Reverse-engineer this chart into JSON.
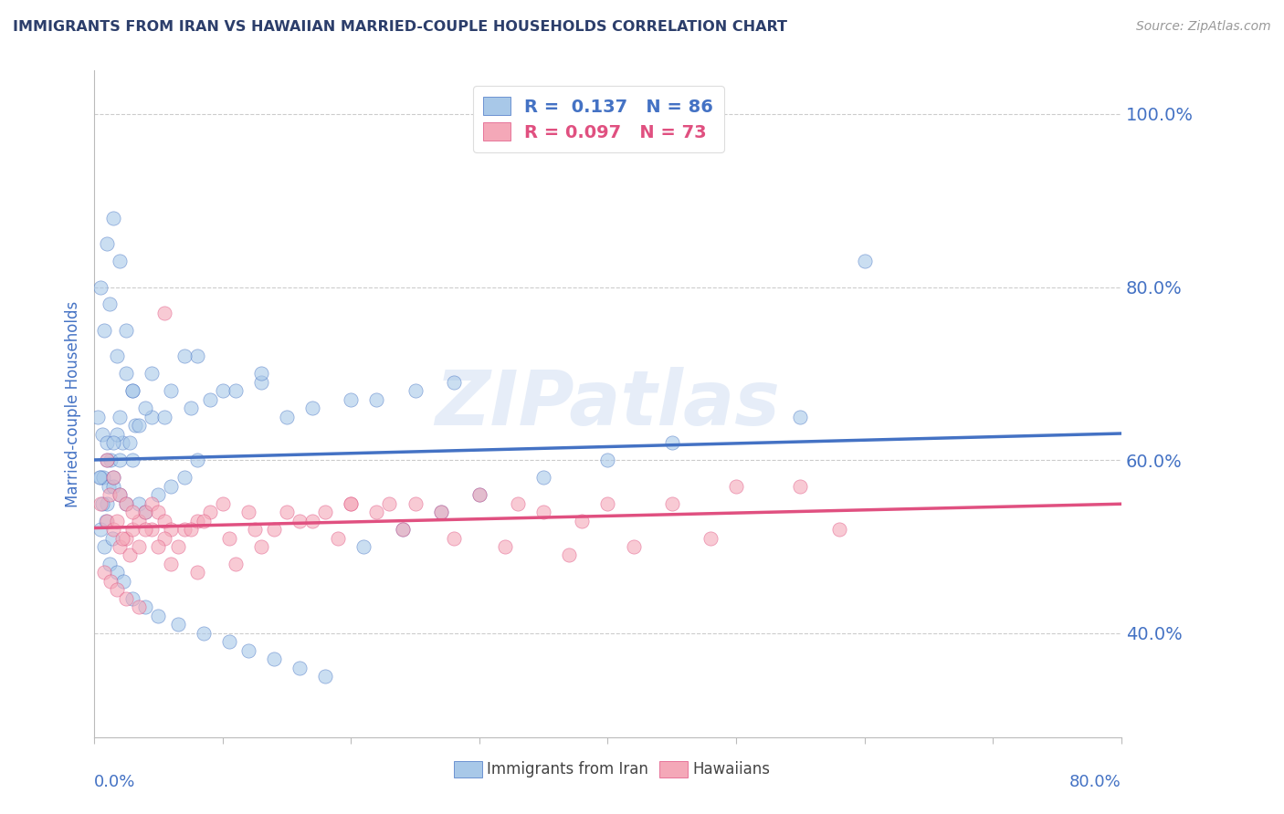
{
  "title": "IMMIGRANTS FROM IRAN VS HAWAIIAN MARRIED-COUPLE HOUSEHOLDS CORRELATION CHART",
  "source": "Source: ZipAtlas.com",
  "ylabel": "Married-couple Households",
  "yticks": [
    40.0,
    60.0,
    80.0,
    100.0
  ],
  "xticks": [
    0.0,
    10.0,
    20.0,
    30.0,
    40.0,
    50.0,
    60.0,
    70.0,
    80.0
  ],
  "xlim": [
    0.0,
    80.0
  ],
  "ylim": [
    28.0,
    105.0
  ],
  "blue_R": 0.137,
  "blue_N": 86,
  "pink_R": 0.097,
  "pink_N": 73,
  "blue_color": "#a8c8e8",
  "pink_color": "#f4a8b8",
  "blue_line_color": "#4472c4",
  "pink_line_color": "#e05080",
  "legend_label_blue": "Immigrants from Iran",
  "legend_label_pink": "Hawaiians",
  "watermark": "ZIPatlas",
  "title_color": "#2c3e6b",
  "axis_label_color": "#4472c4",
  "blue_scatter_x": [
    1.0,
    1.5,
    2.0,
    0.5,
    1.2,
    0.8,
    1.8,
    2.5,
    3.0,
    0.3,
    0.6,
    1.0,
    1.3,
    0.5,
    0.7,
    1.1,
    1.5,
    2.0,
    2.5,
    3.5,
    4.0,
    5.0,
    6.0,
    7.0,
    8.0,
    3.0,
    2.2,
    1.8,
    3.2,
    4.5,
    5.5,
    7.5,
    9.0,
    10.0,
    11.0,
    13.0,
    15.0,
    17.0,
    20.0,
    22.0,
    25.0,
    28.0,
    13.0,
    8.0,
    6.0,
    4.0,
    3.5,
    2.8,
    2.0,
    1.5,
    1.0,
    0.5,
    0.8,
    1.2,
    1.8,
    2.3,
    3.0,
    4.0,
    5.0,
    6.5,
    8.5,
    10.5,
    12.0,
    14.0,
    16.0,
    18.0,
    21.0,
    24.0,
    27.0,
    30.0,
    35.0,
    40.0,
    45.0,
    55.0,
    60.0,
    1.0,
    1.5,
    2.0,
    3.0,
    4.5,
    7.0,
    0.4,
    0.6,
    0.9,
    1.4,
    2.5
  ],
  "blue_scatter_y": [
    85,
    88,
    83,
    80,
    78,
    75,
    72,
    70,
    68,
    65,
    63,
    62,
    60,
    58,
    58,
    57,
    57,
    56,
    55,
    55,
    54,
    56,
    57,
    58,
    60,
    60,
    62,
    63,
    64,
    65,
    65,
    66,
    67,
    68,
    68,
    69,
    65,
    66,
    67,
    67,
    68,
    69,
    70,
    72,
    68,
    66,
    64,
    62,
    60,
    58,
    55,
    52,
    50,
    48,
    47,
    46,
    44,
    43,
    42,
    41,
    40,
    39,
    38,
    37,
    36,
    35,
    50,
    52,
    54,
    56,
    58,
    60,
    62,
    65,
    83,
    60,
    62,
    65,
    68,
    70,
    72,
    58,
    55,
    53,
    51,
    75
  ],
  "pink_scatter_x": [
    0.5,
    1.0,
    1.5,
    2.0,
    2.5,
    3.0,
    3.5,
    4.0,
    4.5,
    5.0,
    5.5,
    6.0,
    7.0,
    8.0,
    9.0,
    10.0,
    12.0,
    14.0,
    16.0,
    18.0,
    20.0,
    22.0,
    25.0,
    30.0,
    35.0,
    40.0,
    50.0,
    55.0,
    1.2,
    1.8,
    2.2,
    2.8,
    3.5,
    4.5,
    5.5,
    6.5,
    7.5,
    8.5,
    10.5,
    12.5,
    15.0,
    17.0,
    20.0,
    23.0,
    27.0,
    33.0,
    38.0,
    45.0,
    1.0,
    1.5,
    2.0,
    2.5,
    3.0,
    4.0,
    5.0,
    6.0,
    8.0,
    11.0,
    13.0,
    19.0,
    24.0,
    28.0,
    32.0,
    37.0,
    42.0,
    48.0,
    58.0,
    0.8,
    1.3,
    1.8,
    2.5,
    3.5,
    5.5
  ],
  "pink_scatter_y": [
    55,
    53,
    52,
    50,
    51,
    52,
    53,
    54,
    55,
    54,
    53,
    52,
    52,
    53,
    54,
    55,
    54,
    52,
    53,
    54,
    55,
    54,
    55,
    56,
    54,
    55,
    57,
    57,
    56,
    53,
    51,
    49,
    50,
    52,
    51,
    50,
    52,
    53,
    51,
    52,
    54,
    53,
    55,
    55,
    54,
    55,
    53,
    55,
    60,
    58,
    56,
    55,
    54,
    52,
    50,
    48,
    47,
    48,
    50,
    51,
    52,
    51,
    50,
    49,
    50,
    51,
    52,
    47,
    46,
    45,
    44,
    43,
    77
  ]
}
